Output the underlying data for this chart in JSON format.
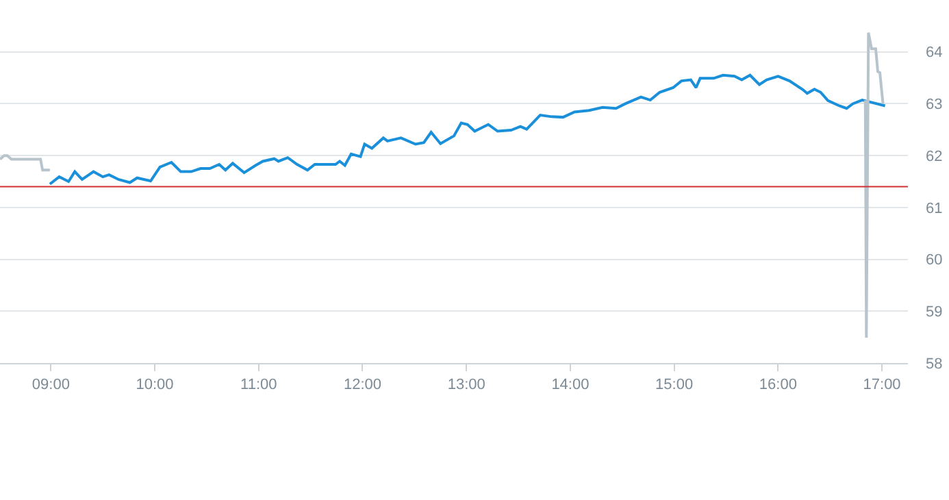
{
  "chart_data": {
    "type": "line",
    "series": [
      {
        "color": "#b8c4cc",
        "x": [
          8.51,
          8.55,
          8.58,
          8.62,
          8.9,
          8.92,
          8.99
        ],
        "values": [
          61.93,
          62.0,
          62.0,
          61.93,
          61.93,
          61.72,
          61.72
        ]
      },
      {
        "color": "#1a90db",
        "x": [
          8.99,
          9.08,
          9.17,
          9.23,
          9.3,
          9.41,
          9.5,
          9.56,
          9.65,
          9.76,
          9.83,
          9.96,
          10.05,
          10.16,
          10.25,
          10.35,
          10.44,
          10.53,
          10.62,
          10.68,
          10.75,
          10.86,
          10.97,
          11.04,
          11.15,
          11.19,
          11.28,
          11.37,
          11.47,
          11.54,
          11.74,
          11.78,
          11.83,
          11.89,
          11.98,
          12.02,
          12.09,
          12.2,
          12.24,
          12.37,
          12.51,
          12.59,
          12.66,
          12.75,
          12.88,
          12.95,
          13.01,
          13.08,
          13.21,
          13.3,
          13.43,
          13.52,
          13.58,
          13.71,
          13.82,
          13.93,
          14.04,
          14.18,
          14.31,
          14.44,
          14.53,
          14.68,
          14.77,
          14.86,
          14.99,
          15.07,
          15.16,
          15.21,
          15.25,
          15.38,
          15.47,
          15.58,
          15.65,
          15.73,
          15.82,
          15.89,
          16.0,
          16.11,
          16.24,
          16.28,
          16.35,
          16.41,
          16.48,
          16.59,
          16.66,
          16.72,
          16.81,
          17.03
        ],
        "values": [
          61.45,
          61.59,
          61.5,
          61.69,
          61.54,
          61.69,
          61.59,
          61.63,
          61.54,
          61.48,
          61.57,
          61.51,
          61.78,
          61.87,
          61.69,
          61.69,
          61.75,
          61.75,
          61.83,
          61.72,
          61.85,
          61.67,
          61.81,
          61.89,
          61.94,
          61.89,
          61.96,
          61.83,
          61.72,
          61.83,
          61.83,
          61.89,
          61.81,
          62.03,
          61.98,
          62.22,
          62.14,
          62.34,
          62.28,
          62.34,
          62.22,
          62.25,
          62.45,
          62.23,
          62.38,
          62.63,
          62.6,
          62.47,
          62.6,
          62.47,
          62.49,
          62.56,
          62.51,
          62.78,
          62.75,
          62.74,
          62.84,
          62.87,
          62.93,
          62.91,
          63.0,
          63.13,
          63.07,
          63.22,
          63.31,
          63.44,
          63.46,
          63.31,
          63.49,
          63.49,
          63.55,
          63.53,
          63.46,
          63.55,
          63.37,
          63.46,
          63.53,
          63.44,
          63.27,
          63.2,
          63.28,
          63.22,
          63.06,
          62.96,
          62.91,
          63.0,
          63.07,
          62.96
        ]
      },
      {
        "color": "#b8c4cc",
        "x": [
          16.84,
          16.85,
          16.87,
          16.9,
          16.94,
          16.96,
          16.98,
          17.01
        ],
        "values": [
          63.07,
          58.49,
          64.37,
          64.06,
          64.06,
          63.62,
          63.6,
          63.0
        ]
      }
    ],
    "xlim": [
      8.51,
      17.25
    ],
    "xticks": [
      {
        "value": 9,
        "label": "09:00"
      },
      {
        "value": 10,
        "label": "10:00"
      },
      {
        "value": 11,
        "label": "11:00"
      },
      {
        "value": 12,
        "label": "12:00"
      },
      {
        "value": 13,
        "label": "13:00"
      },
      {
        "value": 14,
        "label": "14:00"
      },
      {
        "value": 15,
        "label": "15:00"
      },
      {
        "value": 16,
        "label": "16:00"
      },
      {
        "value": 17,
        "label": "17:00"
      }
    ],
    "ylim": [
      58,
      65
    ],
    "yticks": [
      58,
      59,
      60,
      61,
      62,
      63,
      64
    ],
    "ref_lines": [
      {
        "axis": "y",
        "value": 61.4,
        "color": "#d03030"
      }
    ],
    "grid": "y",
    "marker": "none",
    "line_style": "solid"
  }
}
